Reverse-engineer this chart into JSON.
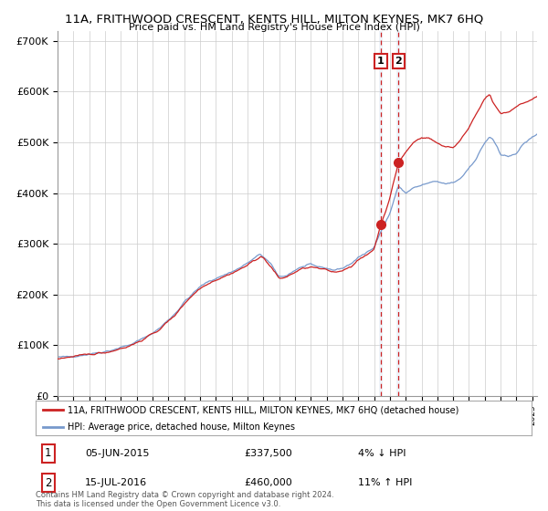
{
  "title": "11A, FRITHWOOD CRESCENT, KENTS HILL, MILTON KEYNES, MK7 6HQ",
  "subtitle": "Price paid vs. HM Land Registry's House Price Index (HPI)",
  "ylim": [
    0,
    720000
  ],
  "yticks": [
    0,
    100000,
    200000,
    300000,
    400000,
    500000,
    600000,
    700000
  ],
  "ytick_labels": [
    "£0",
    "£100K",
    "£200K",
    "£300K",
    "£400K",
    "£500K",
    "£600K",
    "£700K"
  ],
  "hpi_color": "#7799cc",
  "price_color": "#cc2222",
  "marker_color": "#cc2222",
  "vline_color": "#cc2222",
  "vband_color": "#c8d8ee",
  "legend_label_price": "11A, FRITHWOOD CRESCENT, KENTS HILL, MILTON KEYNES, MK7 6HQ (detached house)",
  "legend_label_hpi": "HPI: Average price, detached house, Milton Keynes",
  "transaction1_label": "05-JUN-2015",
  "transaction1_value_label": "£337,500",
  "transaction1_hpi_label": "4% ↓ HPI",
  "transaction1_price": 337500,
  "transaction2_label": "15-JUL-2016",
  "transaction2_value_label": "£460,000",
  "transaction2_hpi_label": "11% ↑ HPI",
  "transaction2_price": 460000,
  "footnote": "Contains HM Land Registry data © Crown copyright and database right 2024.\nThis data is licensed under the Open Government Licence v3.0.",
  "transaction1_x": 2015.43,
  "transaction2_x": 2016.54,
  "xlim_start": 1995.0,
  "xlim_end": 2025.3
}
